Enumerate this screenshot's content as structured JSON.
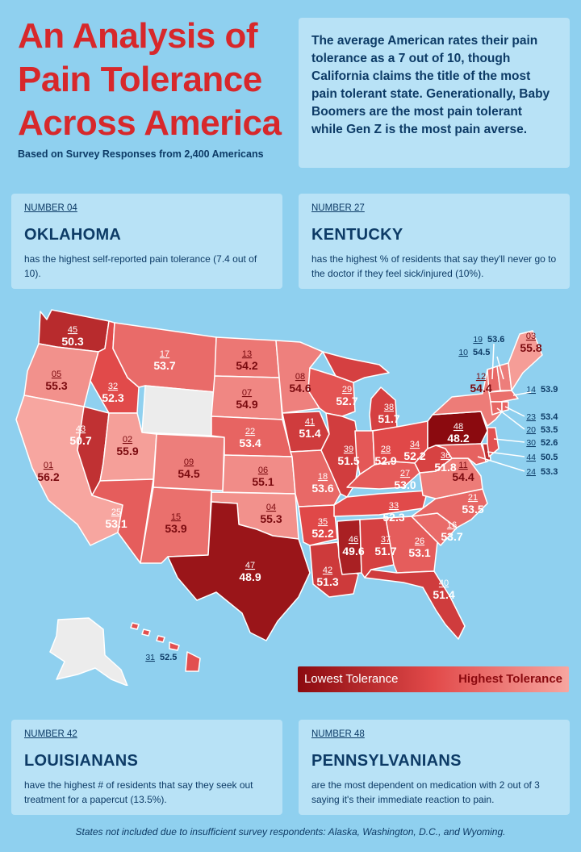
{
  "title": {
    "line1": "An Analysis of",
    "line2": "Pain Tolerance",
    "line3": "Across America"
  },
  "subtitle": "Based on Survey Responses from 2,400 Americans",
  "intro": "The average American rates their pain tolerance as a 7 out of 10, though California claims the title of the most pain tolerant state. Generationally, Baby Boomers are the most pain tolerant while Gen Z is the most pain averse.",
  "facts": [
    {
      "number": "NUMBER 04",
      "state": "OKLAHOMA",
      "text": "has the highest self-reported pain tolerance (7.4 out of 10)."
    },
    {
      "number": "NUMBER 27",
      "state": "KENTUCKY",
      "text": "has the highest % of residents that say they'll never go to the doctor if they feel sick/injured (10%)."
    },
    {
      "number": "NUMBER 42",
      "state": "LOUISIANANS",
      "text": "have the highest # of residents that say they seek out treatment for a papercut (13.5%)."
    },
    {
      "number": "NUMBER 48",
      "state": "PENNSYLVANIANS",
      "text": "are the most dependent on medication with 2 out of 3 saying it's their immediate reaction to pain."
    }
  ],
  "legend": {
    "low": "Lowest Tolerance",
    "high": "Highest Tolerance"
  },
  "footer": "States not included due to insufficient survey respondents: Alaska, Washington, D.C., and Wyoming.",
  "colors": {
    "low": "#8b0a0f",
    "mid": "#e04848",
    "high": "#f7a6a0",
    "excluded": "#ececec"
  },
  "states": [
    {
      "name": "Washington",
      "rank": "45",
      "score": "50.3"
    },
    {
      "name": "Oregon",
      "rank": "05",
      "score": "55.3"
    },
    {
      "name": "California",
      "rank": "01",
      "score": "56.2"
    },
    {
      "name": "Nevada",
      "rank": "43",
      "score": "50.7"
    },
    {
      "name": "Idaho",
      "rank": "32",
      "score": "52.3"
    },
    {
      "name": "Montana",
      "rank": "17",
      "score": "53.7"
    },
    {
      "name": "Utah",
      "rank": "02",
      "score": "55.9"
    },
    {
      "name": "Arizona",
      "rank": "25",
      "score": "53.1"
    },
    {
      "name": "New Mexico",
      "rank": "15",
      "score": "53.9"
    },
    {
      "name": "Colorado",
      "rank": "09",
      "score": "54.5"
    },
    {
      "name": "North Dakota",
      "rank": "13",
      "score": "54.2"
    },
    {
      "name": "South Dakota",
      "rank": "07",
      "score": "54.9"
    },
    {
      "name": "Nebraska",
      "rank": "22",
      "score": "53.4"
    },
    {
      "name": "Kansas",
      "rank": "06",
      "score": "55.1"
    },
    {
      "name": "Oklahoma",
      "rank": "04",
      "score": "55.3"
    },
    {
      "name": "Texas",
      "rank": "47",
      "score": "48.9"
    },
    {
      "name": "Minnesota",
      "rank": "08",
      "score": "54.6"
    },
    {
      "name": "Iowa",
      "rank": "41",
      "score": "51.4"
    },
    {
      "name": "Missouri",
      "rank": "18",
      "score": "53.6"
    },
    {
      "name": "Arkansas",
      "rank": "35",
      "score": "52.2"
    },
    {
      "name": "Louisiana",
      "rank": "42",
      "score": "51.3"
    },
    {
      "name": "Wisconsin",
      "rank": "29",
      "score": "52.7"
    },
    {
      "name": "Illinois",
      "rank": "39",
      "score": "51.5"
    },
    {
      "name": "Michigan",
      "rank": "38",
      "score": "51.7"
    },
    {
      "name": "Indiana",
      "rank": "28",
      "score": "52.9"
    },
    {
      "name": "Ohio",
      "rank": "34",
      "score": "52.2"
    },
    {
      "name": "Kentucky",
      "rank": "27",
      "score": "53.0"
    },
    {
      "name": "Tennessee",
      "rank": "33",
      "score": "52.3"
    },
    {
      "name": "Mississippi",
      "rank": "46",
      "score": "49.6"
    },
    {
      "name": "Alabama",
      "rank": "37",
      "score": "51.7"
    },
    {
      "name": "Georgia",
      "rank": "26",
      "score": "53.1"
    },
    {
      "name": "Florida",
      "rank": "40",
      "score": "51.4"
    },
    {
      "name": "South Carolina",
      "rank": "16",
      "score": "53.7"
    },
    {
      "name": "North Carolina",
      "rank": "21",
      "score": "53.5"
    },
    {
      "name": "Virginia",
      "rank": "11",
      "score": "54.4"
    },
    {
      "name": "West Virginia",
      "rank": "36",
      "score": "51.8"
    },
    {
      "name": "Pennsylvania",
      "rank": "48",
      "score": "48.2"
    },
    {
      "name": "New York",
      "rank": "12",
      "score": "54.4"
    },
    {
      "name": "Maine",
      "rank": "03",
      "score": "55.8"
    },
    {
      "name": "Vermont",
      "rank": "19",
      "score": "53.6"
    },
    {
      "name": "New Hampshire",
      "rank": "10",
      "score": "54.5"
    },
    {
      "name": "Massachusetts",
      "rank": "14",
      "score": "53.9"
    },
    {
      "name": "Rhode Island",
      "rank": "23",
      "score": "53.4"
    },
    {
      "name": "Connecticut",
      "rank": "20",
      "score": "53.5"
    },
    {
      "name": "New Jersey",
      "rank": "30",
      "score": "52.6"
    },
    {
      "name": "Delaware",
      "rank": "44",
      "score": "50.5"
    },
    {
      "name": "Maryland",
      "rank": "24",
      "score": "53.3"
    },
    {
      "name": "Hawaii",
      "rank": "31",
      "score": "52.5"
    }
  ]
}
